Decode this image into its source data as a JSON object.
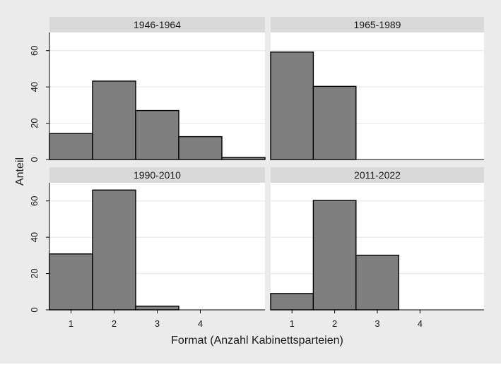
{
  "colors": {
    "background": "#ebebeb",
    "panel_bg": "#ffffff",
    "strip_bg": "#d9d9d9",
    "bar_fill": "#7f7f7f",
    "bar_stroke": "#000000",
    "grid": "#e5e5e5",
    "text": "#1a1a1a"
  },
  "chart_data": {
    "type": "bar",
    "subtype": "histogram-facets",
    "xlabel": "Format (Anzahl Kabinettsparteien)",
    "ylabel": "Anteil",
    "xticks": [
      1,
      2,
      3,
      4
    ],
    "yticks": [
      0,
      20,
      40,
      60
    ],
    "xlim": [
      0.5,
      5.5
    ],
    "ylim": [
      0,
      70
    ],
    "grid": true,
    "panels": [
      {
        "title": "1946-1964",
        "bins": [
          1,
          2,
          3,
          4,
          5
        ],
        "values": [
          14.3,
          43.2,
          27.0,
          12.6,
          1.1
        ]
      },
      {
        "title": "1965-1989",
        "bins": [
          1,
          2
        ],
        "values": [
          59.2,
          40.3
        ]
      },
      {
        "title": "1990-2010",
        "bins": [
          1,
          2,
          3
        ],
        "values": [
          30.8,
          66.0,
          2.0
        ]
      },
      {
        "title": "2011-2022",
        "bins": [
          1,
          2,
          3
        ],
        "values": [
          9.0,
          60.3,
          30.1
        ]
      }
    ]
  }
}
